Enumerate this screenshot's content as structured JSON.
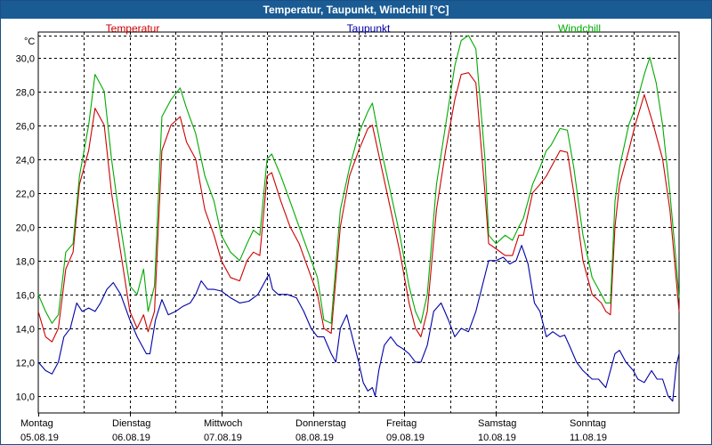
{
  "window": {
    "title": "Temperatur, Taupunkt, Windchill [°C]"
  },
  "chart_data": {
    "type": "line",
    "title": "Temperatur, Taupunkt, Windchill [°C]",
    "ylabel": "°C",
    "ylim": [
      9,
      31.5
    ],
    "yticks": [
      "10,0",
      "12,0",
      "14,0",
      "16,0",
      "18,0",
      "20,0",
      "22,0",
      "24,0",
      "26,0",
      "28,0",
      "30,0"
    ],
    "ytick_values": [
      10,
      12,
      14,
      16,
      18,
      20,
      22,
      24,
      26,
      28,
      30
    ],
    "xlim": [
      0,
      7
    ],
    "days": [
      {
        "weekday": "Montag",
        "date": "05.08.19"
      },
      {
        "weekday": "Dienstag",
        "date": "06.08.19"
      },
      {
        "weekday": "Mittwoch",
        "date": "07.08.19"
      },
      {
        "weekday": "Donnerstag",
        "date": "08.08.19"
      },
      {
        "weekday": "Freitag",
        "date": "09.08.19"
      },
      {
        "weekday": "Samstag",
        "date": "10.08.19"
      },
      {
        "weekday": "Sonntag",
        "date": "11.08.19"
      }
    ],
    "grid": true,
    "series": [
      {
        "name": "Temperatur",
        "color": "#cc0000",
        "points": [
          [
            0,
            15.0
          ],
          [
            0.08,
            13.5
          ],
          [
            0.15,
            13.2
          ],
          [
            0.22,
            14.0
          ],
          [
            0.3,
            17.5
          ],
          [
            0.38,
            18.5
          ],
          [
            0.45,
            22.5
          ],
          [
            0.55,
            24.5
          ],
          [
            0.62,
            27.0
          ],
          [
            0.72,
            26.0
          ],
          [
            0.8,
            22.0
          ],
          [
            0.9,
            18.5
          ],
          [
            1.0,
            15.0
          ],
          [
            1.08,
            14.0
          ],
          [
            1.15,
            14.8
          ],
          [
            1.2,
            13.8
          ],
          [
            1.27,
            15.0
          ],
          [
            1.35,
            24.5
          ],
          [
            1.45,
            26.0
          ],
          [
            1.55,
            26.5
          ],
          [
            1.62,
            25.0
          ],
          [
            1.72,
            24.0
          ],
          [
            1.82,
            21.0
          ],
          [
            1.92,
            19.5
          ],
          [
            2.0,
            18.0
          ],
          [
            2.1,
            17.0
          ],
          [
            2.2,
            16.8
          ],
          [
            2.28,
            18.0
          ],
          [
            2.35,
            18.5
          ],
          [
            2.42,
            18.3
          ],
          [
            2.5,
            23.0
          ],
          [
            2.55,
            23.2
          ],
          [
            2.65,
            21.5
          ],
          [
            2.75,
            20.0
          ],
          [
            2.85,
            19.0
          ],
          [
            2.95,
            17.5
          ],
          [
            3.05,
            16.0
          ],
          [
            3.12,
            14.0
          ],
          [
            3.2,
            13.7
          ],
          [
            3.3,
            20.0
          ],
          [
            3.4,
            23.0
          ],
          [
            3.5,
            24.5
          ],
          [
            3.6,
            25.8
          ],
          [
            3.65,
            26.0
          ],
          [
            3.75,
            23.5
          ],
          [
            3.85,
            21.0
          ],
          [
            3.95,
            18.5
          ],
          [
            4.05,
            15.5
          ],
          [
            4.12,
            14.0
          ],
          [
            4.18,
            13.5
          ],
          [
            4.25,
            15.0
          ],
          [
            4.35,
            21.0
          ],
          [
            4.45,
            24.5
          ],
          [
            4.55,
            27.5
          ],
          [
            4.62,
            29.0
          ],
          [
            4.7,
            29.1
          ],
          [
            4.78,
            28.5
          ],
          [
            4.88,
            22.0
          ],
          [
            4.92,
            19.0
          ],
          [
            5.0,
            18.7
          ],
          [
            5.1,
            18.3
          ],
          [
            5.18,
            18.3
          ],
          [
            5.25,
            19.5
          ],
          [
            5.3,
            19.5
          ],
          [
            5.4,
            22.0
          ],
          [
            5.48,
            22.5
          ],
          [
            5.55,
            23.0
          ],
          [
            5.6,
            23.5
          ],
          [
            5.7,
            24.5
          ],
          [
            5.78,
            24.4
          ],
          [
            5.85,
            22.0
          ],
          [
            5.95,
            18.0
          ],
          [
            6.05,
            16.0
          ],
          [
            6.15,
            15.5
          ],
          [
            6.2,
            15.0
          ],
          [
            6.25,
            14.8
          ],
          [
            6.3,
            20.0
          ],
          [
            6.35,
            22.5
          ],
          [
            6.45,
            24.5
          ],
          [
            6.52,
            26.0
          ],
          [
            6.62,
            27.8
          ],
          [
            6.72,
            26.0
          ],
          [
            6.82,
            24.0
          ],
          [
            6.9,
            21.0
          ],
          [
            6.95,
            18.0
          ],
          [
            7.0,
            15.0
          ]
        ]
      },
      {
        "name": "Taupunkt",
        "color": "#0000a8",
        "points": [
          [
            0,
            12.0
          ],
          [
            0.08,
            11.5
          ],
          [
            0.15,
            11.3
          ],
          [
            0.22,
            12.0
          ],
          [
            0.28,
            13.5
          ],
          [
            0.35,
            14.0
          ],
          [
            0.42,
            15.5
          ],
          [
            0.48,
            15.0
          ],
          [
            0.55,
            15.2
          ],
          [
            0.62,
            15.0
          ],
          [
            0.68,
            15.5
          ],
          [
            0.75,
            16.3
          ],
          [
            0.82,
            16.7
          ],
          [
            0.9,
            16.0
          ],
          [
            1.0,
            14.5
          ],
          [
            1.08,
            13.5
          ],
          [
            1.18,
            12.5
          ],
          [
            1.22,
            12.5
          ],
          [
            1.28,
            14.5
          ],
          [
            1.35,
            15.7
          ],
          [
            1.42,
            14.8
          ],
          [
            1.5,
            15.0
          ],
          [
            1.58,
            15.3
          ],
          [
            1.66,
            15.5
          ],
          [
            1.72,
            16.0
          ],
          [
            1.78,
            16.8
          ],
          [
            1.85,
            16.3
          ],
          [
            1.92,
            16.3
          ],
          [
            2.0,
            16.2
          ],
          [
            2.1,
            15.8
          ],
          [
            2.2,
            15.5
          ],
          [
            2.3,
            15.6
          ],
          [
            2.4,
            16.0
          ],
          [
            2.48,
            16.8
          ],
          [
            2.52,
            17.2
          ],
          [
            2.56,
            16.3
          ],
          [
            2.62,
            16.0
          ],
          [
            2.72,
            16.0
          ],
          [
            2.82,
            15.8
          ],
          [
            2.9,
            15.0
          ],
          [
            2.98,
            14.0
          ],
          [
            3.05,
            13.5
          ],
          [
            3.12,
            13.5
          ],
          [
            3.2,
            12.5
          ],
          [
            3.25,
            12.0
          ],
          [
            3.3,
            14.0
          ],
          [
            3.37,
            14.8
          ],
          [
            3.43,
            13.5
          ],
          [
            3.5,
            12.0
          ],
          [
            3.55,
            10.8
          ],
          [
            3.6,
            10.3
          ],
          [
            3.65,
            10.5
          ],
          [
            3.68,
            10.0
          ],
          [
            3.72,
            11.5
          ],
          [
            3.78,
            13.0
          ],
          [
            3.85,
            13.5
          ],
          [
            3.92,
            13.0
          ],
          [
            3.98,
            12.8
          ],
          [
            4.05,
            12.5
          ],
          [
            4.12,
            12.0
          ],
          [
            4.18,
            12.0
          ],
          [
            4.25,
            13.0
          ],
          [
            4.32,
            15.0
          ],
          [
            4.4,
            15.5
          ],
          [
            4.48,
            14.5
          ],
          [
            4.55,
            13.5
          ],
          [
            4.62,
            14.0
          ],
          [
            4.7,
            13.8
          ],
          [
            4.78,
            15.0
          ],
          [
            4.85,
            16.5
          ],
          [
            4.92,
            18.0
          ],
          [
            5.0,
            18.0
          ],
          [
            5.08,
            18.2
          ],
          [
            5.15,
            17.8
          ],
          [
            5.22,
            18.0
          ],
          [
            5.28,
            18.9
          ],
          [
            5.35,
            17.8
          ],
          [
            5.42,
            15.5
          ],
          [
            5.48,
            15.0
          ],
          [
            5.55,
            13.5
          ],
          [
            5.62,
            13.8
          ],
          [
            5.7,
            13.5
          ],
          [
            5.75,
            13.6
          ],
          [
            5.8,
            13.0
          ],
          [
            5.88,
            12.0
          ],
          [
            5.95,
            11.5
          ],
          [
            6.05,
            11.0
          ],
          [
            6.12,
            11.0
          ],
          [
            6.2,
            10.5
          ],
          [
            6.3,
            12.5
          ],
          [
            6.35,
            12.7
          ],
          [
            6.42,
            12.0
          ],
          [
            6.5,
            11.5
          ],
          [
            6.55,
            11.0
          ],
          [
            6.62,
            10.8
          ],
          [
            6.7,
            11.5
          ],
          [
            6.76,
            11.0
          ],
          [
            6.82,
            11.0
          ],
          [
            6.88,
            10.0
          ],
          [
            6.93,
            9.7
          ],
          [
            6.97,
            11.8
          ],
          [
            7.0,
            12.5
          ]
        ]
      },
      {
        "name": "Windchill",
        "color": "#00aa00",
        "points": [
          [
            0,
            16.0
          ],
          [
            0.08,
            15.0
          ],
          [
            0.15,
            14.3
          ],
          [
            0.22,
            14.8
          ],
          [
            0.3,
            18.5
          ],
          [
            0.38,
            19.0
          ],
          [
            0.45,
            23.0
          ],
          [
            0.55,
            26.0
          ],
          [
            0.62,
            29.0
          ],
          [
            0.72,
            28.0
          ],
          [
            0.8,
            24.0
          ],
          [
            0.9,
            20.0
          ],
          [
            1.0,
            16.5
          ],
          [
            1.08,
            16.0
          ],
          [
            1.15,
            17.5
          ],
          [
            1.2,
            15.0
          ],
          [
            1.27,
            16.5
          ],
          [
            1.35,
            26.5
          ],
          [
            1.45,
            27.5
          ],
          [
            1.55,
            28.2
          ],
          [
            1.62,
            27.0
          ],
          [
            1.72,
            25.5
          ],
          [
            1.82,
            23.0
          ],
          [
            1.92,
            21.5
          ],
          [
            2.0,
            19.5
          ],
          [
            2.1,
            18.5
          ],
          [
            2.2,
            18.0
          ],
          [
            2.28,
            19.0
          ],
          [
            2.35,
            19.8
          ],
          [
            2.42,
            19.5
          ],
          [
            2.5,
            24.0
          ],
          [
            2.55,
            24.3
          ],
          [
            2.65,
            23.0
          ],
          [
            2.75,
            21.5
          ],
          [
            2.85,
            20.0
          ],
          [
            2.95,
            18.5
          ],
          [
            3.05,
            17.0
          ],
          [
            3.12,
            14.5
          ],
          [
            3.2,
            14.3
          ],
          [
            3.3,
            21.0
          ],
          [
            3.4,
            23.5
          ],
          [
            3.5,
            25.5
          ],
          [
            3.6,
            26.8
          ],
          [
            3.65,
            27.3
          ],
          [
            3.75,
            24.5
          ],
          [
            3.85,
            22.0
          ],
          [
            3.95,
            19.5
          ],
          [
            4.05,
            16.5
          ],
          [
            4.12,
            15.0
          ],
          [
            4.18,
            14.3
          ],
          [
            4.25,
            16.0
          ],
          [
            4.35,
            22.5
          ],
          [
            4.45,
            26.0
          ],
          [
            4.55,
            29.5
          ],
          [
            4.62,
            31.0
          ],
          [
            4.7,
            31.3
          ],
          [
            4.78,
            30.5
          ],
          [
            4.88,
            24.0
          ],
          [
            4.92,
            19.5
          ],
          [
            5.0,
            19.0
          ],
          [
            5.1,
            19.5
          ],
          [
            5.18,
            19.2
          ],
          [
            5.25,
            20.0
          ],
          [
            5.3,
            20.5
          ],
          [
            5.4,
            22.5
          ],
          [
            5.48,
            23.5
          ],
          [
            5.55,
            24.5
          ],
          [
            5.6,
            24.8
          ],
          [
            5.7,
            25.8
          ],
          [
            5.78,
            25.7
          ],
          [
            5.85,
            23.5
          ],
          [
            5.95,
            19.5
          ],
          [
            6.05,
            17.0
          ],
          [
            6.15,
            16.0
          ],
          [
            6.2,
            15.5
          ],
          [
            6.25,
            15.5
          ],
          [
            6.3,
            21.5
          ],
          [
            6.35,
            23.5
          ],
          [
            6.45,
            26.0
          ],
          [
            6.52,
            27.0
          ],
          [
            6.62,
            29.0
          ],
          [
            6.68,
            30.0
          ],
          [
            6.75,
            28.5
          ],
          [
            6.82,
            26.0
          ],
          [
            6.9,
            22.0
          ],
          [
            6.95,
            19.0
          ],
          [
            7.0,
            15.8
          ]
        ]
      }
    ]
  }
}
